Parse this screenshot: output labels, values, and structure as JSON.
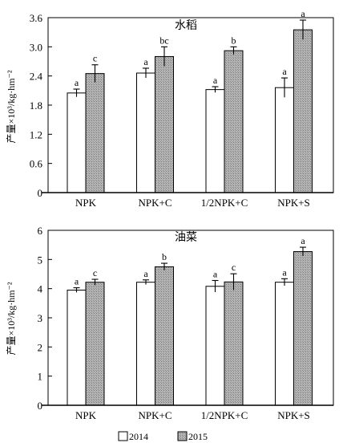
{
  "legend": {
    "entries": [
      {
        "name": "2014",
        "fill": "#ffffff"
      },
      {
        "name": "2015",
        "fill": "#a8a8a8"
      }
    ]
  },
  "chart_data": [
    {
      "type": "bar",
      "title": "水稻",
      "ylabel": "产量×10³/kg·hm⁻²",
      "categories": [
        "NPK",
        "NPK+C",
        "1/2NPK+C",
        "NPK+S"
      ],
      "ylim": [
        0,
        3.6
      ],
      "yticks": [
        0,
        0.6,
        1.2,
        1.8,
        2.4,
        3.0,
        3.6
      ],
      "ytick_labels": [
        "0",
        "0.6",
        "1.2",
        "1.8",
        "2.4",
        "3.0",
        "3.6"
      ],
      "series": [
        {
          "name": "2014",
          "values": [
            2.05,
            2.46,
            2.12,
            2.16
          ],
          "errors": [
            0.08,
            0.1,
            0.06,
            0.2
          ],
          "labels": [
            "a",
            "a",
            "a",
            "a"
          ]
        },
        {
          "name": "2015",
          "values": [
            2.45,
            2.8,
            2.92,
            3.35
          ],
          "errors": [
            0.18,
            0.2,
            0.08,
            0.2
          ],
          "labels": [
            "c",
            "bc",
            "b",
            "a"
          ]
        }
      ]
    },
    {
      "type": "bar",
      "title": "油菜",
      "ylabel": "产量×10³/kg·hm⁻²",
      "categories": [
        "NPK",
        "NPK+C",
        "1/2NPK+C",
        "NPK+S"
      ],
      "ylim": [
        0,
        6
      ],
      "yticks": [
        0,
        1,
        2,
        3,
        4,
        5,
        6
      ],
      "ytick_labels": [
        "0",
        "1",
        "2",
        "3",
        "4",
        "5",
        "6"
      ],
      "series": [
        {
          "name": "2014",
          "values": [
            3.95,
            4.22,
            4.08,
            4.22
          ],
          "errors": [
            0.08,
            0.08,
            0.2,
            0.12
          ],
          "labels": [
            "a",
            "a",
            "a",
            "a"
          ]
        },
        {
          "name": "2015",
          "values": [
            4.22,
            4.75,
            4.23,
            5.27
          ],
          "errors": [
            0.1,
            0.12,
            0.28,
            0.15
          ],
          "labels": [
            "c",
            "b",
            "c",
            "a"
          ]
        }
      ]
    }
  ]
}
